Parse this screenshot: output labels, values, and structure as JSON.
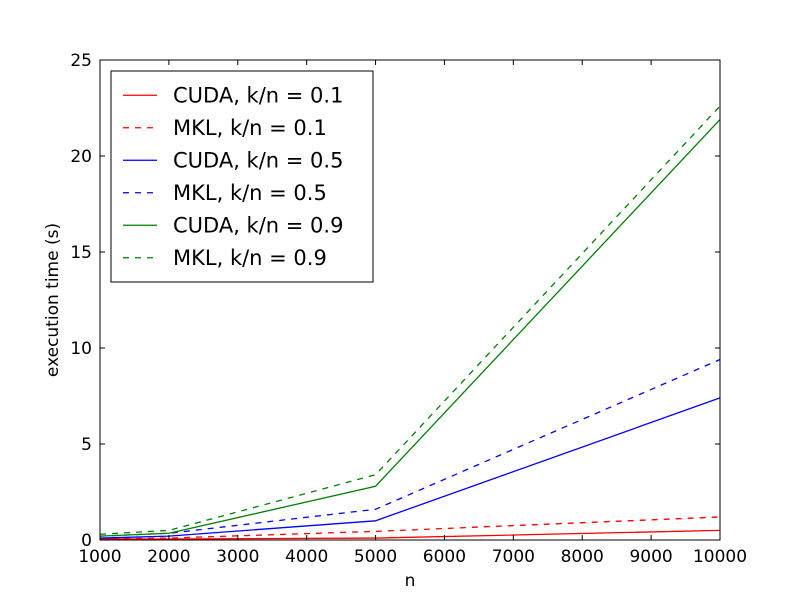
{
  "chart_data": {
    "type": "line",
    "title": "",
    "xlabel": "n",
    "ylabel": "execution time (s)",
    "xlim": [
      1000,
      10000
    ],
    "ylim": [
      0,
      25
    ],
    "x_ticks": [
      1000,
      2000,
      3000,
      4000,
      5000,
      6000,
      7000,
      8000,
      9000,
      10000
    ],
    "y_ticks": [
      0,
      5,
      10,
      15,
      20,
      25
    ],
    "grid": false,
    "legend_position": "upper-left",
    "x": [
      1000,
      2000,
      5000,
      10000
    ],
    "series": [
      {
        "name": "CUDA, k/n = 0.1",
        "color": "#ff0000",
        "style": "solid",
        "values": [
          0.05,
          0.05,
          0.1,
          0.5
        ]
      },
      {
        "name": "MKL, k/n = 0.1",
        "color": "#ff0000",
        "style": "dashed",
        "values": [
          0.05,
          0.1,
          0.45,
          1.2
        ]
      },
      {
        "name": "CUDA, k/n = 0.5",
        "color": "#0000ff",
        "style": "solid",
        "values": [
          0.1,
          0.2,
          1.0,
          7.4
        ]
      },
      {
        "name": "MKL, k/n = 0.5",
        "color": "#0000ff",
        "style": "dashed",
        "values": [
          0.2,
          0.35,
          1.6,
          9.4
        ]
      },
      {
        "name": "CUDA, k/n = 0.9",
        "color": "#008000",
        "style": "solid",
        "values": [
          0.2,
          0.35,
          2.8,
          21.9
        ]
      },
      {
        "name": "MKL, k/n = 0.9",
        "color": "#008000",
        "style": "dashed",
        "values": [
          0.3,
          0.5,
          3.4,
          22.6
        ]
      }
    ]
  }
}
